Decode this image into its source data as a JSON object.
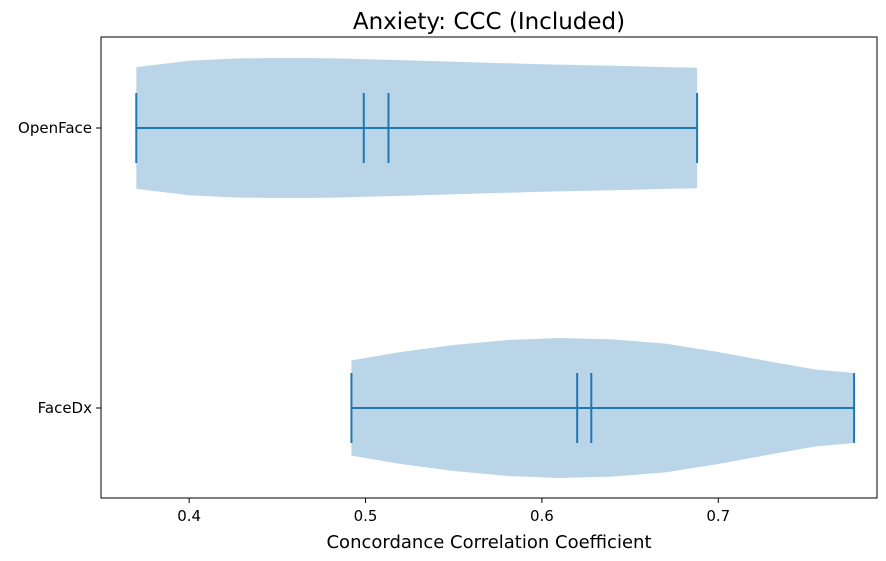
{
  "chart_data": {
    "type": "violin",
    "orientation": "horizontal",
    "title": "Anxiety: CCC (Included)",
    "xlabel": "Concordance Correlation Coefficient",
    "ylabel": "",
    "xlim": [
      0.35,
      0.79
    ],
    "xticks": [
      0.4,
      0.5,
      0.6,
      0.7
    ],
    "xtick_labels": [
      "0.4",
      "0.5",
      "0.6",
      "0.7"
    ],
    "categories": [
      "OpenFace",
      "FaceDx"
    ],
    "violin_color": "#bad5e8",
    "line_color": "#1f77b4",
    "grid": false,
    "series": [
      {
        "category": "OpenFace",
        "min": 0.37,
        "max": 0.688,
        "median": 0.499,
        "mean": 0.513,
        "density_profile": [
          [
            0.37,
            0.87
          ],
          [
            0.4,
            0.96
          ],
          [
            0.43,
            0.995
          ],
          [
            0.455,
            1.0
          ],
          [
            0.48,
            0.995
          ],
          [
            0.52,
            0.97
          ],
          [
            0.56,
            0.94
          ],
          [
            0.6,
            0.91
          ],
          [
            0.64,
            0.89
          ],
          [
            0.67,
            0.87
          ],
          [
            0.688,
            0.86
          ]
        ]
      },
      {
        "category": "FaceDx",
        "min": 0.492,
        "max": 0.777,
        "median": 0.62,
        "mean": 0.628,
        "density_profile": [
          [
            0.492,
            0.68
          ],
          [
            0.52,
            0.8
          ],
          [
            0.55,
            0.9
          ],
          [
            0.58,
            0.97
          ],
          [
            0.61,
            1.0
          ],
          [
            0.64,
            0.98
          ],
          [
            0.67,
            0.92
          ],
          [
            0.7,
            0.8
          ],
          [
            0.73,
            0.66
          ],
          [
            0.755,
            0.55
          ],
          [
            0.777,
            0.5
          ]
        ]
      }
    ]
  }
}
